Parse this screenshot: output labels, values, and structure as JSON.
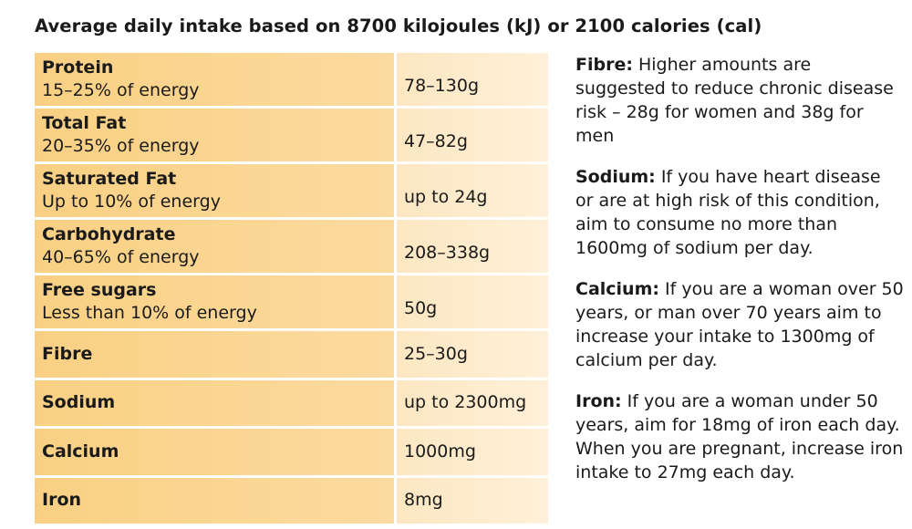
{
  "title": "Average daily intake based on 8700 kilojoules (kJ) or 2100 calories (cal)",
  "table": {
    "rows": [
      {
        "nutrient": "Protein",
        "sub": "15–25% of energy",
        "amount": "78–130g"
      },
      {
        "nutrient": "Total Fat",
        "sub": "20–35% of energy",
        "amount": "47–82g"
      },
      {
        "nutrient": "Saturated Fat",
        "sub": "Up to 10% of energy",
        "amount": "up to 24g"
      },
      {
        "nutrient": "Carbohydrate",
        "sub": "40–65% of energy",
        "amount": "208–338g"
      },
      {
        "nutrient": "Free sugars",
        "sub": "Less than 10% of energy",
        "amount": "50g"
      },
      {
        "nutrient": "Fibre",
        "amount": "25–30g"
      },
      {
        "nutrient": "Sodium",
        "amount": "up to 2300mg"
      },
      {
        "nutrient": "Calcium",
        "amount": "1000mg"
      },
      {
        "nutrient": "Iron",
        "amount": "8mg"
      }
    ]
  },
  "notes": [
    {
      "heading": "Fibre:",
      "text": " Higher amounts are suggested to reduce chronic disease risk – 28g for women and 38g for men"
    },
    {
      "heading": "Sodium:",
      "text": " If you have heart disease or are at high risk of this condition, aim to consume no more than 1600mg of sodium per day."
    },
    {
      "heading": "Calcium:",
      "text": " If you are a woman over 50 years, or man over 70 years aim to increase your intake to 1300mg of calcium per day."
    },
    {
      "heading": "Iron:",
      "text": " If you are a woman under 50 years, aim for 18mg of iron each day. When you are pregnant, increase iron intake to 27mg each day."
    }
  ],
  "colors": {
    "left_cell": "#f9d083",
    "right_cell": "#fde7c2"
  }
}
